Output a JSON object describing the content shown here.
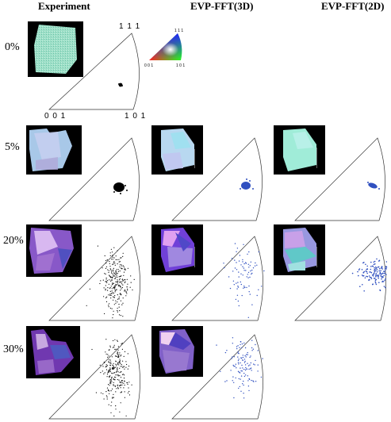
{
  "headers": {
    "experiment": "Experiment",
    "evp3d": "EVP-FFT(3D)",
    "evp2d": "EVP-FFT(2D)"
  },
  "rows": [
    {
      "label": "0%"
    },
    {
      "label": "5%"
    },
    {
      "label": "20%"
    },
    {
      "label": "30%"
    }
  ],
  "ipf_ticks": {
    "top": "1 1 1",
    "bottom_left": "0 0 1",
    "bottom_right": "1 0 1"
  },
  "legend_ticks": {
    "top": "1 1 1",
    "bottom_left": "0 0 1",
    "bottom_right": "1 0 1"
  },
  "colors": {
    "experiment_points": "#000000",
    "simulation_points": "#3050c0",
    "map_background": "#000000",
    "triangle_outline": "#333333"
  }
}
